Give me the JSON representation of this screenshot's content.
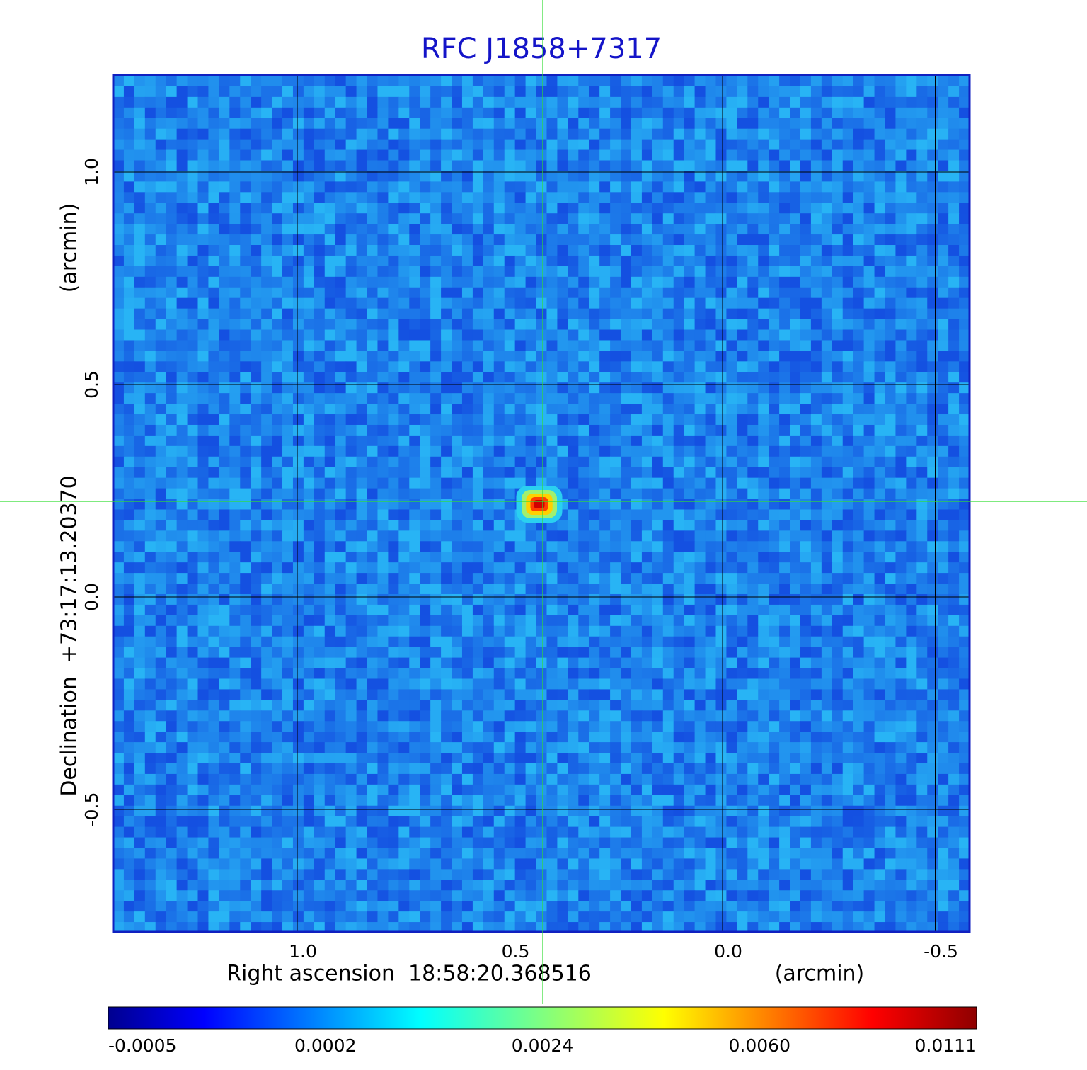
{
  "title": "RFC J1858+7317",
  "x_axis": {
    "label": "Right ascension  18:58:20.368516",
    "unit": "(arcmin)",
    "ticks": [
      {
        "value": 1,
        "label": "1.0"
      },
      0.5,
      {
        "value": 0,
        "label": "0.0"
      },
      -0.5
    ]
  },
  "y_axis": {
    "label": "Declination  +73:17:13.20370",
    "unit": "(arcmin)",
    "ticks": [
      {
        "value": 1,
        "label": "1.0"
      },
      0.5,
      {
        "value": 0,
        "label": "0.0"
      },
      -0.5
    ]
  },
  "colorbar": {
    "ticks": [
      -0.0005,
      0.0002,
      0.0024,
      {
        "value": 0.006,
        "label": "0.0060"
      },
      0.0111
    ]
  }
}
